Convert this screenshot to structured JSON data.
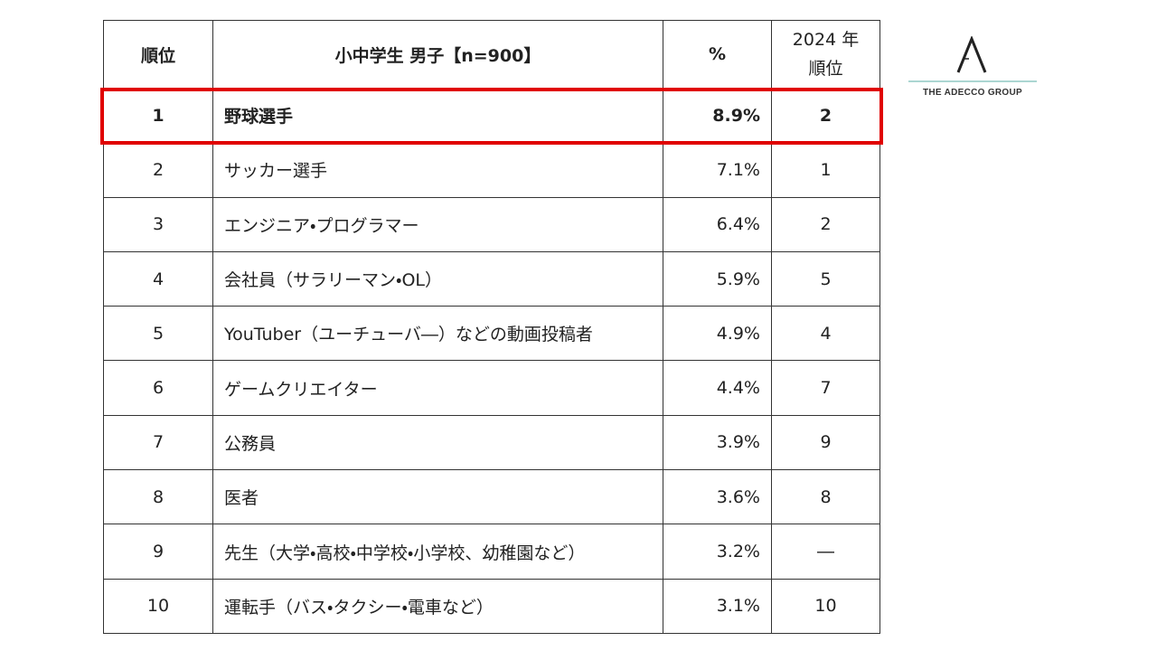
{
  "table": {
    "header": [
      "順位",
      "小中学生 男子【n=900】",
      "%"
    ],
    "header_prev_rank": [
      "2024 年",
      "順位"
    ],
    "rows": [
      [
        "1",
        "野球選手",
        "8.9%",
        "2"
      ],
      [
        "2",
        "サッカー選手",
        "7.1%",
        "1"
      ],
      [
        "3",
        "エンジニア・プログラマー",
        "6.4%",
        "2"
      ],
      [
        "4",
        "会社員（サラリーマン・OL）",
        "5.9%",
        "5"
      ],
      [
        "5",
        "YouTuber（ユーチューバ―）などの動画投稿者",
        "4.9%",
        "4"
      ],
      [
        "6",
        "ゲームクリエイター",
        "4.4%",
        "7"
      ],
      [
        "7",
        "公務員",
        "3.9%",
        "9"
      ],
      [
        "8",
        "医者",
        "3.6%",
        "8"
      ],
      [
        "9",
        "先生（大学・高校・中学校・小学校、幼稚園など）",
        "3.2%",
        "―"
      ],
      [
        "10",
        "運転手（バス・タクシー・電車など）",
        "3.1%",
        "10"
      ]
    ]
  },
  "logo": {
    "text": "THE ADECCO GROUP"
  }
}
